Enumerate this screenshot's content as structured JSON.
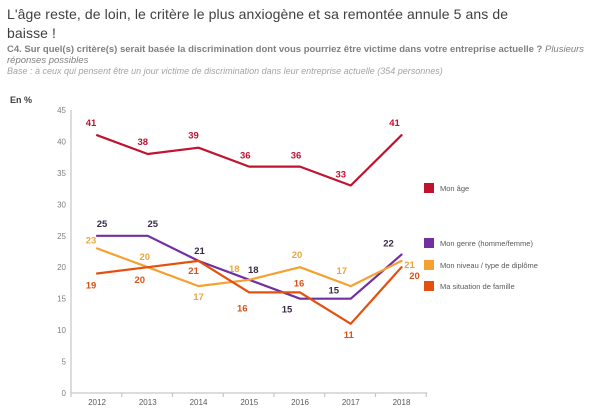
{
  "header": {
    "title_lines": [
      "L'âge reste, de loin, le critère le plus anxiogène et sa remontée annule 5 ans de",
      "baisse !"
    ],
    "question": "C4. Sur quel(s) critère(s) serait basée la discrimination dont vous pourriez être victime dans votre entreprise actuelle ?",
    "question_note": "Plusieurs réponses possibles",
    "base_note": "Base : à ceux qui pensent être un jour victime de discrimination dans leur entreprise actuelle (354 personnes)"
  },
  "chart_data": {
    "type": "line",
    "unit_label": "En %",
    "x": [
      "2012",
      "2013",
      "2014",
      "2015",
      "2016",
      "2017",
      "2018"
    ],
    "series": [
      {
        "name": "Mon âge",
        "color": "#C11330",
        "label_color": "#BD1230",
        "values": [
          41,
          38,
          39,
          36,
          36,
          33,
          41
        ]
      },
      {
        "name": "Mon genre (homme/femme)",
        "color": "#7030A0",
        "label_color": "#3A2B47",
        "values": [
          25,
          25,
          21,
          18,
          15,
          15,
          22
        ]
      },
      {
        "name": "Mon niveau / type de diplôme",
        "color": "#F5A02F",
        "label_color": "#E8A63E",
        "values": [
          23,
          20,
          17,
          18,
          20,
          17,
          21
        ]
      },
      {
        "name": "Ma situation de famille",
        "color": "#E5500F",
        "label_color": "#DC5214",
        "values": [
          19,
          20,
          21,
          16,
          16,
          11,
          20
        ]
      }
    ],
    "ylim": [
      0,
      45
    ],
    "ytick_step": 5,
    "grid": false,
    "legend_position": "right",
    "axis_color": "#c6c6c6",
    "ytick_color": "#7f7f7f",
    "xtick_color": "#595959",
    "legend_text_color": "#595959",
    "unit_label_color": "#404040"
  }
}
